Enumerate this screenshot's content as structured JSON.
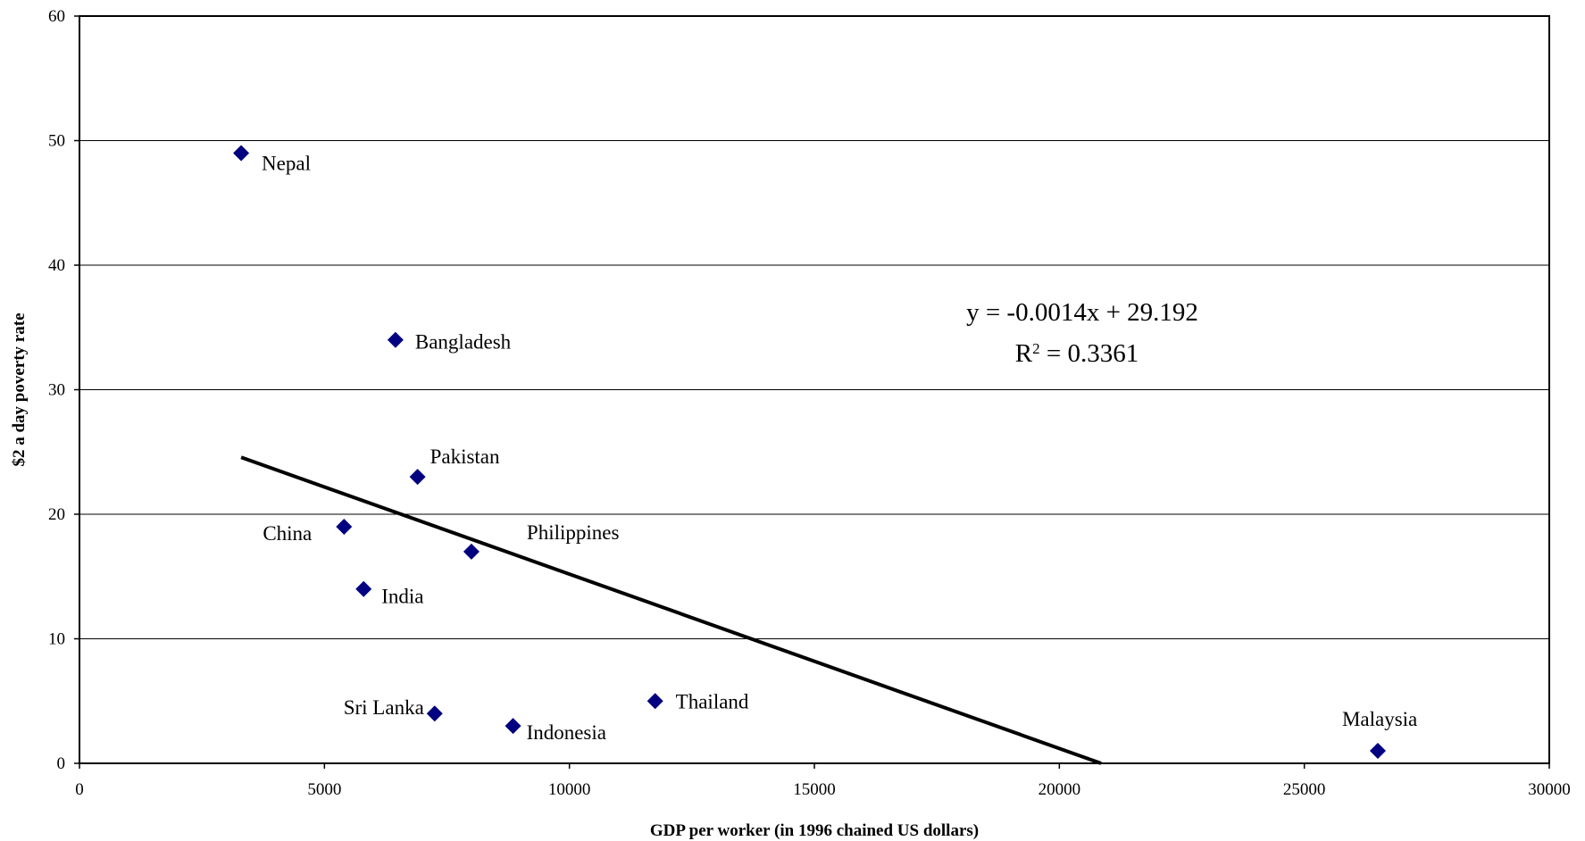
{
  "chart_data": {
    "type": "scatter",
    "title": "",
    "xlabel": "GDP per worker (in 1996 chained US dollars)",
    "ylabel": "$2 a day poverty rate",
    "xlim": [
      0,
      30000
    ],
    "ylim": [
      0,
      60
    ],
    "xticks": [
      0,
      5000,
      10000,
      15000,
      20000,
      25000,
      30000
    ],
    "yticks": [
      0,
      10,
      20,
      30,
      40,
      50,
      60
    ],
    "grid": "horizontal",
    "legend": "none",
    "marker": "diamond",
    "colors": {
      "marker": "#000080",
      "trendline": "#000000",
      "gridline": "#000000"
    },
    "points": [
      {
        "label": "Nepal",
        "x": 3300,
        "y": 49
      },
      {
        "label": "Bangladesh",
        "x": 6450,
        "y": 34
      },
      {
        "label": "Pakistan",
        "x": 6900,
        "y": 23
      },
      {
        "label": "China",
        "x": 5400,
        "y": 19
      },
      {
        "label": "Philippines",
        "x": 8000,
        "y": 17
      },
      {
        "label": "India",
        "x": 5800,
        "y": 14
      },
      {
        "label": "Sri Lanka",
        "x": 7250,
        "y": 4
      },
      {
        "label": "Indonesia",
        "x": 8850,
        "y": 3
      },
      {
        "label": "Thailand",
        "x": 11750,
        "y": 5
      },
      {
        "label": "Malaysia",
        "x": 26500,
        "y": 1
      }
    ],
    "trendline": {
      "slope": -0.0014,
      "intercept": 29.192,
      "x_start": 3300,
      "equation_text": "y = -0.0014x + 29.192",
      "r2_prefix": "R",
      "r2_sup": "2",
      "r2_suffix": " = 0.3361"
    }
  }
}
